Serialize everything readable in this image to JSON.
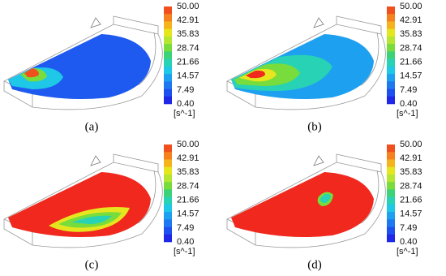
{
  "panels": [
    {
      "label": "(a)",
      "legend": {
        "ticks": [
          "50.00",
          "42.91",
          "35.83",
          "28.74",
          "21.66",
          "14.57",
          "7.49",
          "0.40"
        ],
        "unit": "[s^-1]"
      }
    },
    {
      "label": "(b)",
      "legend": {
        "ticks": [
          "50.00",
          "42.91",
          "35.83",
          "28.74",
          "21.66",
          "14.57",
          "7.49",
          "0.40"
        ],
        "unit": "[s^-1]"
      }
    },
    {
      "label": "(c)",
      "legend": {
        "ticks": [
          "50.00",
          "42.91",
          "35.83",
          "28.74",
          "21.66",
          "14.57",
          "7.49",
          "0.40"
        ],
        "unit": "[s^-1]"
      }
    },
    {
      "label": "(d)",
      "legend": {
        "ticks": [
          "50.00",
          "42.91",
          "35.83",
          "28.74",
          "21.66",
          "14.57",
          "7.49",
          "0.40"
        ],
        "unit": "[s^-1]"
      }
    }
  ]
}
